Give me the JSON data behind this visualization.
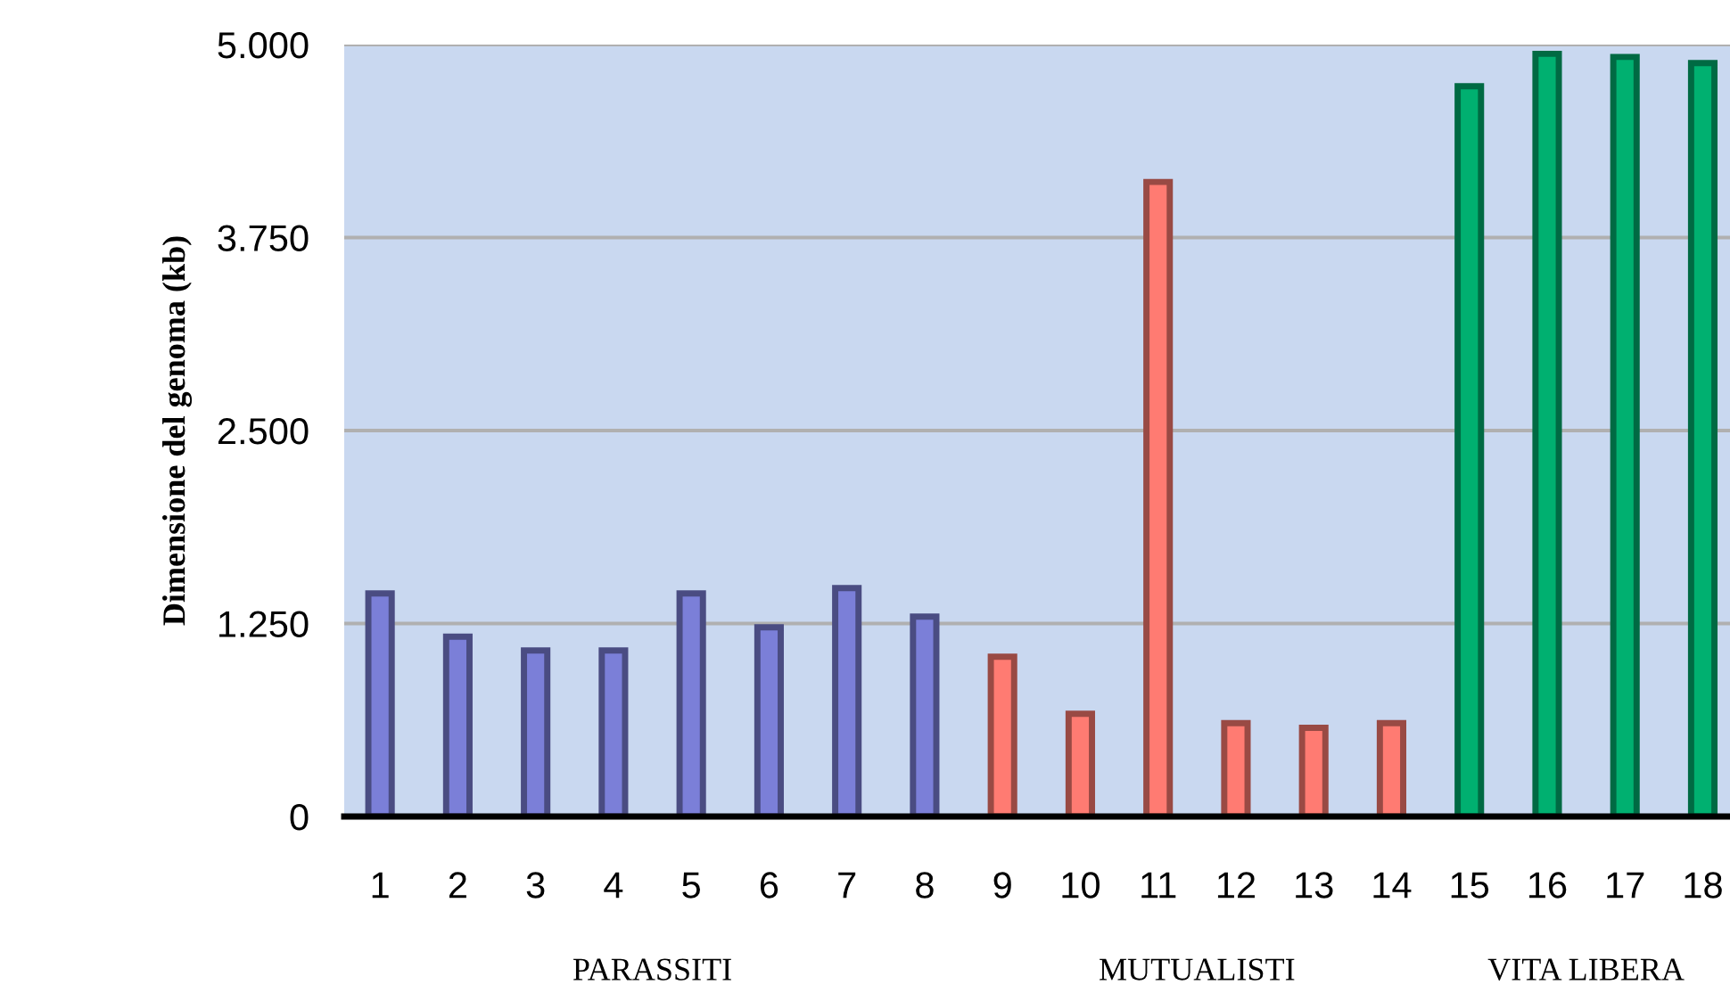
{
  "chart_data": {
    "type": "bar",
    "ylabel": "Dimensione del genoma (kb)",
    "categories": [
      "1",
      "2",
      "3",
      "4",
      "5",
      "6",
      "7",
      "8",
      "9",
      "10",
      "11",
      "12",
      "13",
      "14",
      "15",
      "16",
      "17",
      "18"
    ],
    "values": [
      1445,
      1165,
      1075,
      1075,
      1445,
      1225,
      1480,
      1295,
      1035,
      665,
      4110,
      605,
      575,
      605,
      4730,
      4940,
      4920,
      4880
    ],
    "colors": [
      "#7b7fd8",
      "#7b7fd8",
      "#7b7fd8",
      "#7b7fd8",
      "#7b7fd8",
      "#7b7fd8",
      "#7b7fd8",
      "#7b7fd8",
      "#ff7b72",
      "#ff7b72",
      "#ff7b72",
      "#ff7b72",
      "#ff7b72",
      "#ff7b72",
      "#00b070",
      "#00b070",
      "#00b070",
      "#00b070"
    ],
    "ylim": [
      0,
      5000
    ],
    "yticks": [
      0,
      {
        "value": 1250,
        "label": "1.250"
      },
      {
        "value": 2500,
        "label": "2.500"
      },
      {
        "value": 3750,
        "label": "3.750"
      },
      {
        "value": 5000,
        "label": "5.000"
      }
    ],
    "grid": "y",
    "annotations": [
      "PARASSITI",
      "MUTUALISTI",
      "VITA LIBERA"
    ]
  }
}
